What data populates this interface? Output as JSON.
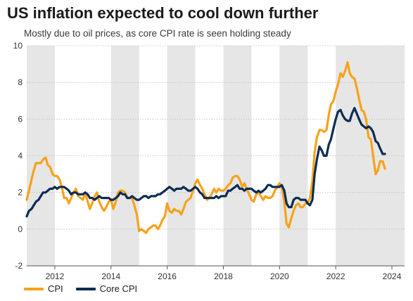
{
  "title": "US inflation expected to cool down further",
  "subtitle": "Mostly due to oil prices, as core CPI rate is seen holding steady",
  "chart_data": {
    "type": "line",
    "title": "US inflation expected to cool down further",
    "subtitle": "Mostly due to oil prices, as core CPI rate is seen holding steady",
    "xlabel": "",
    "ylabel": "",
    "xlim": [
      2011.0,
      2024.45
    ],
    "ylim": [
      -2,
      10
    ],
    "xticks": [
      2012,
      2014,
      2016,
      2018,
      2020,
      2022,
      2024
    ],
    "yticks": [
      -2,
      0,
      2,
      4,
      6,
      8,
      10
    ],
    "grid": "horizontal dotted",
    "legend": "bottom-left",
    "shaded_periods": [
      [
        2011.0,
        2012.0
      ],
      [
        2014.0,
        2015.0
      ],
      [
        2016.0,
        2017.0
      ],
      [
        2018.0,
        2019.0
      ],
      [
        2020.0,
        2021.0
      ],
      [
        2022.0,
        2024.45
      ]
    ],
    "series": [
      {
        "name": "CPI",
        "color": "#F7A21B",
        "x": [
          2011.0,
          2011.08,
          2011.17,
          2011.25,
          2011.33,
          2011.42,
          2011.5,
          2011.58,
          2011.67,
          2011.75,
          2011.83,
          2011.92,
          2012.0,
          2012.08,
          2012.17,
          2012.25,
          2012.33,
          2012.42,
          2012.5,
          2012.58,
          2012.67,
          2012.75,
          2012.83,
          2012.92,
          2013.0,
          2013.08,
          2013.17,
          2013.25,
          2013.33,
          2013.42,
          2013.5,
          2013.58,
          2013.67,
          2013.75,
          2013.83,
          2013.92,
          2014.0,
          2014.08,
          2014.17,
          2014.25,
          2014.33,
          2014.42,
          2014.5,
          2014.58,
          2014.67,
          2014.75,
          2014.83,
          2014.92,
          2015.0,
          2015.08,
          2015.17,
          2015.25,
          2015.33,
          2015.42,
          2015.5,
          2015.58,
          2015.67,
          2015.75,
          2015.83,
          2015.92,
          2016.0,
          2016.08,
          2016.17,
          2016.25,
          2016.33,
          2016.42,
          2016.5,
          2016.58,
          2016.67,
          2016.75,
          2016.83,
          2016.92,
          2017.0,
          2017.08,
          2017.17,
          2017.25,
          2017.33,
          2017.42,
          2017.5,
          2017.58,
          2017.67,
          2017.75,
          2017.83,
          2017.92,
          2018.0,
          2018.08,
          2018.17,
          2018.25,
          2018.33,
          2018.42,
          2018.5,
          2018.58,
          2018.67,
          2018.75,
          2018.83,
          2018.92,
          2019.0,
          2019.08,
          2019.17,
          2019.25,
          2019.33,
          2019.42,
          2019.5,
          2019.58,
          2019.67,
          2019.75,
          2019.83,
          2019.92,
          2020.0,
          2020.08,
          2020.17,
          2020.25,
          2020.33,
          2020.42,
          2020.5,
          2020.58,
          2020.67,
          2020.75,
          2020.83,
          2020.92,
          2021.0,
          2021.08,
          2021.17,
          2021.25,
          2021.33,
          2021.42,
          2021.5,
          2021.58,
          2021.67,
          2021.75,
          2021.83,
          2021.92,
          2022.0,
          2022.08,
          2022.17,
          2022.25,
          2022.33,
          2022.42,
          2022.5,
          2022.58,
          2022.67,
          2022.75,
          2022.83,
          2022.92,
          2023.0,
          2023.08,
          2023.17,
          2023.25,
          2023.33,
          2023.42,
          2023.5,
          2023.58,
          2023.67,
          2023.75
        ],
        "values": [
          1.6,
          2.1,
          2.7,
          3.2,
          3.6,
          3.6,
          3.6,
          3.8,
          3.9,
          3.5,
          3.4,
          3.0,
          2.9,
          2.9,
          2.7,
          2.3,
          1.7,
          1.7,
          1.4,
          1.7,
          2.0,
          2.2,
          1.8,
          1.7,
          1.6,
          2.0,
          1.5,
          1.1,
          1.4,
          1.8,
          2.0,
          1.5,
          1.2,
          1.0,
          1.2,
          1.5,
          1.6,
          1.1,
          1.5,
          2.0,
          2.1,
          2.1,
          2.0,
          1.7,
          1.7,
          1.7,
          1.3,
          0.8,
          -0.1,
          0.0,
          -0.1,
          -0.2,
          0.0,
          0.1,
          0.2,
          0.2,
          0.0,
          0.2,
          0.5,
          0.7,
          1.4,
          1.0,
          0.9,
          1.1,
          1.0,
          1.0,
          0.8,
          1.1,
          1.5,
          1.6,
          1.7,
          2.1,
          2.5,
          2.7,
          2.4,
          2.2,
          1.9,
          1.6,
          1.7,
          1.9,
          2.2,
          2.0,
          2.2,
          2.1,
          2.1,
          2.2,
          2.4,
          2.5,
          2.8,
          2.9,
          2.9,
          2.7,
          2.3,
          2.5,
          2.2,
          1.9,
          1.6,
          1.5,
          1.9,
          2.0,
          1.8,
          1.6,
          1.8,
          1.7,
          1.7,
          1.8,
          2.1,
          2.3,
          2.5,
          2.3,
          1.5,
          0.3,
          0.1,
          0.6,
          1.0,
          1.3,
          1.4,
          1.2,
          1.2,
          1.4,
          1.4,
          1.7,
          2.6,
          4.2,
          5.0,
          5.4,
          5.4,
          5.3,
          5.4,
          6.2,
          6.8,
          7.0,
          7.5,
          7.9,
          8.5,
          8.3,
          8.6,
          9.1,
          8.5,
          8.3,
          8.2,
          7.7,
          7.1,
          6.5,
          6.4,
          6.0,
          5.0,
          4.9,
          4.0,
          3.0,
          3.2,
          3.7,
          3.7,
          3.3
        ]
      },
      {
        "name": "Core CPI",
        "color": "#0D2C54",
        "x": [
          2011.0,
          2011.08,
          2011.17,
          2011.25,
          2011.33,
          2011.42,
          2011.5,
          2011.58,
          2011.67,
          2011.75,
          2011.83,
          2011.92,
          2012.0,
          2012.08,
          2012.17,
          2012.25,
          2012.33,
          2012.42,
          2012.5,
          2012.58,
          2012.67,
          2012.75,
          2012.83,
          2012.92,
          2013.0,
          2013.08,
          2013.17,
          2013.25,
          2013.33,
          2013.42,
          2013.5,
          2013.58,
          2013.67,
          2013.75,
          2013.83,
          2013.92,
          2014.0,
          2014.08,
          2014.17,
          2014.25,
          2014.33,
          2014.42,
          2014.5,
          2014.58,
          2014.67,
          2014.75,
          2014.83,
          2014.92,
          2015.0,
          2015.08,
          2015.17,
          2015.25,
          2015.33,
          2015.42,
          2015.5,
          2015.58,
          2015.67,
          2015.75,
          2015.83,
          2015.92,
          2016.0,
          2016.08,
          2016.17,
          2016.25,
          2016.33,
          2016.42,
          2016.5,
          2016.58,
          2016.67,
          2016.75,
          2016.83,
          2016.92,
          2017.0,
          2017.08,
          2017.17,
          2017.25,
          2017.33,
          2017.42,
          2017.5,
          2017.58,
          2017.67,
          2017.75,
          2017.83,
          2017.92,
          2018.0,
          2018.08,
          2018.17,
          2018.25,
          2018.33,
          2018.42,
          2018.5,
          2018.58,
          2018.67,
          2018.75,
          2018.83,
          2018.92,
          2019.0,
          2019.08,
          2019.17,
          2019.25,
          2019.33,
          2019.42,
          2019.5,
          2019.58,
          2019.67,
          2019.75,
          2019.83,
          2019.92,
          2020.0,
          2020.08,
          2020.17,
          2020.25,
          2020.33,
          2020.42,
          2020.5,
          2020.58,
          2020.67,
          2020.75,
          2020.83,
          2020.92,
          2021.0,
          2021.08,
          2021.17,
          2021.25,
          2021.33,
          2021.42,
          2021.5,
          2021.58,
          2021.67,
          2021.75,
          2021.83,
          2021.92,
          2022.0,
          2022.08,
          2022.17,
          2022.25,
          2022.33,
          2022.42,
          2022.5,
          2022.58,
          2022.67,
          2022.75,
          2022.83,
          2022.92,
          2023.0,
          2023.08,
          2023.17,
          2023.25,
          2023.33,
          2023.42,
          2023.5,
          2023.58,
          2023.67,
          2023.75
        ],
        "values": [
          0.7,
          1.0,
          1.1,
          1.3,
          1.5,
          1.6,
          1.8,
          2.0,
          2.0,
          2.1,
          2.2,
          2.2,
          2.3,
          2.2,
          2.3,
          2.3,
          2.3,
          2.2,
          2.1,
          1.9,
          2.0,
          2.0,
          1.9,
          1.9,
          1.9,
          2.0,
          1.9,
          1.7,
          1.7,
          1.6,
          1.7,
          1.8,
          1.7,
          1.7,
          1.7,
          1.7,
          1.6,
          1.6,
          1.7,
          1.8,
          2.0,
          1.9,
          1.9,
          1.7,
          1.7,
          1.8,
          1.7,
          1.6,
          1.6,
          1.7,
          1.8,
          1.8,
          1.7,
          1.8,
          1.8,
          1.8,
          1.9,
          1.9,
          2.0,
          2.1,
          2.2,
          2.3,
          2.2,
          2.1,
          2.2,
          2.2,
          2.2,
          2.3,
          2.2,
          2.1,
          2.1,
          2.2,
          2.3,
          2.2,
          2.0,
          1.9,
          1.7,
          1.7,
          1.7,
          1.7,
          1.7,
          1.8,
          1.7,
          1.8,
          1.8,
          1.8,
          2.1,
          2.1,
          2.2,
          2.3,
          2.4,
          2.2,
          2.2,
          2.1,
          2.2,
          2.2,
          2.2,
          2.1,
          2.0,
          2.1,
          2.0,
          2.1,
          2.2,
          2.4,
          2.4,
          2.3,
          2.3,
          2.3,
          2.3,
          2.4,
          2.1,
          1.4,
          1.2,
          1.2,
          1.6,
          1.7,
          1.7,
          1.6,
          1.6,
          1.6,
          1.4,
          1.3,
          1.6,
          3.0,
          3.8,
          4.5,
          4.3,
          4.0,
          4.0,
          4.6,
          4.9,
          5.5,
          6.0,
          6.4,
          6.5,
          6.2,
          6.0,
          5.9,
          5.9,
          6.3,
          6.6,
          6.3,
          6.0,
          5.7,
          5.6,
          5.5,
          5.6,
          5.5,
          5.3,
          4.8,
          4.7,
          4.4,
          4.1,
          4.1
        ]
      }
    ]
  }
}
